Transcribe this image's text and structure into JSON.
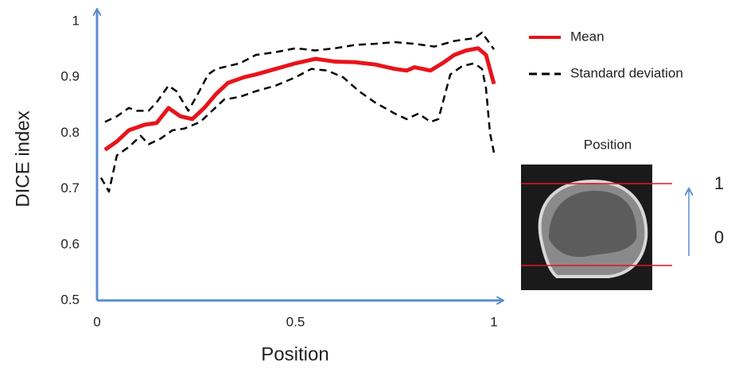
{
  "chart_data": {
    "type": "line",
    "xlabel": "Position",
    "ylabel": "DICE index",
    "xlim": [
      0,
      1
    ],
    "ylim": [
      0.5,
      1
    ],
    "xticks": [
      0,
      0.5,
      1
    ],
    "yticks": [
      0.5,
      0.6,
      0.7,
      0.8,
      0.9,
      1
    ],
    "grid": false,
    "legend": "top-right",
    "series": [
      {
        "name": "Mean",
        "color": "#e8141b",
        "dash": "solid",
        "x": [
          0.02,
          0.05,
          0.08,
          0.12,
          0.15,
          0.18,
          0.21,
          0.24,
          0.27,
          0.3,
          0.33,
          0.37,
          0.4,
          0.45,
          0.5,
          0.55,
          0.6,
          0.65,
          0.7,
          0.75,
          0.78,
          0.8,
          0.84,
          0.87,
          0.9,
          0.93,
          0.96,
          0.98,
          1.0
        ],
        "values": [
          0.77,
          0.785,
          0.805,
          0.815,
          0.818,
          0.845,
          0.83,
          0.825,
          0.845,
          0.87,
          0.89,
          0.9,
          0.905,
          0.915,
          0.925,
          0.933,
          0.928,
          0.927,
          0.923,
          0.915,
          0.912,
          0.918,
          0.912,
          0.925,
          0.94,
          0.948,
          0.952,
          0.94,
          0.888
        ]
      },
      {
        "name": "Standard deviation",
        "color": "#000000",
        "dash": "dashed",
        "bands": [
          {
            "x": [
              0.02,
              0.05,
              0.08,
              0.1,
              0.13,
              0.15,
              0.18,
              0.2,
              0.23,
              0.25,
              0.28,
              0.3,
              0.33,
              0.36,
              0.4,
              0.45,
              0.5,
              0.55,
              0.6,
              0.65,
              0.7,
              0.75,
              0.8,
              0.85,
              0.9,
              0.95,
              0.97,
              0.99,
              1.0
            ],
            "values": [
              0.82,
              0.83,
              0.845,
              0.84,
              0.84,
              0.855,
              0.885,
              0.875,
              0.84,
              0.865,
              0.905,
              0.915,
              0.92,
              0.925,
              0.94,
              0.945,
              0.952,
              0.948,
              0.952,
              0.958,
              0.96,
              0.963,
              0.96,
              0.955,
              0.965,
              0.97,
              0.98,
              0.96,
              0.95
            ]
          },
          {
            "x": [
              0.01,
              0.03,
              0.05,
              0.08,
              0.11,
              0.13,
              0.16,
              0.19,
              0.22,
              0.26,
              0.29,
              0.32,
              0.36,
              0.4,
              0.45,
              0.5,
              0.54,
              0.58,
              0.62,
              0.66,
              0.7,
              0.75,
              0.78,
              0.81,
              0.84,
              0.86,
              0.89,
              0.92,
              0.95,
              0.97,
              0.98,
              0.99,
              1.0
            ],
            "values": [
              0.72,
              0.695,
              0.76,
              0.775,
              0.795,
              0.78,
              0.79,
              0.805,
              0.808,
              0.82,
              0.84,
              0.86,
              0.865,
              0.875,
              0.885,
              0.9,
              0.915,
              0.912,
              0.9,
              0.875,
              0.855,
              0.835,
              0.825,
              0.835,
              0.82,
              0.825,
              0.905,
              0.92,
              0.925,
              0.915,
              0.88,
              0.8,
              0.765
            ]
          }
        ]
      }
    ]
  },
  "inset": {
    "title": "Position",
    "top_label": "1",
    "bottom_label": "0"
  }
}
